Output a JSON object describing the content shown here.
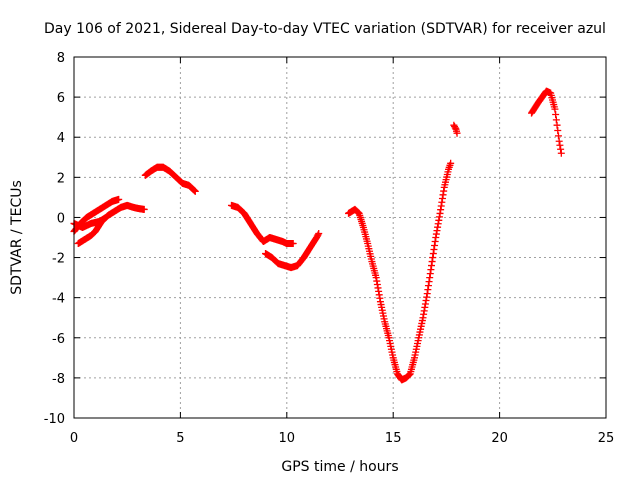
{
  "chart_data": {
    "type": "scatter",
    "title": "Day 106 of 2021, Sidereal Day-to-day VTEC variation (SDTVAR) for receiver azul",
    "xlabel": "GPS time / hours",
    "ylabel": "SDTVAR / TECUs",
    "xlim": [
      0,
      25
    ],
    "ylim": [
      -10,
      8
    ],
    "xticks": [
      "0",
      "5",
      "10",
      "15",
      "20",
      "25"
    ],
    "yticks": [
      "-10",
      "-8",
      "-6",
      "-4",
      "-2",
      "0",
      "2",
      "4",
      "6",
      "8"
    ],
    "grid": true,
    "marker": "+",
    "colors": {
      "series": "#ff0000",
      "grid": "#a0a0a0",
      "axes": "#000000"
    },
    "series": [
      {
        "segments": [
          [
            [
              0.0,
              -0.7
            ],
            [
              0.3,
              -0.3
            ],
            [
              0.6,
              0.0
            ],
            [
              0.9,
              0.2
            ],
            [
              1.2,
              0.4
            ],
            [
              1.5,
              0.6
            ],
            [
              1.8,
              0.8
            ],
            [
              2.1,
              0.9
            ]
          ],
          [
            [
              0.0,
              -0.3
            ],
            [
              0.4,
              -0.5
            ],
            [
              0.8,
              -0.3
            ],
            [
              1.2,
              -0.2
            ],
            [
              1.5,
              0.0
            ]
          ],
          [
            [
              0.2,
              -1.3
            ],
            [
              0.5,
              -1.1
            ],
            [
              0.8,
              -0.9
            ],
            [
              1.0,
              -0.7
            ],
            [
              1.3,
              -0.2
            ],
            [
              1.6,
              0.1
            ],
            [
              1.9,
              0.3
            ],
            [
              2.2,
              0.5
            ],
            [
              2.5,
              0.6
            ],
            [
              2.8,
              0.5
            ],
            [
              3.0,
              0.45
            ],
            [
              3.3,
              0.4
            ]
          ],
          [
            [
              3.35,
              2.1
            ],
            [
              3.6,
              2.3
            ],
            [
              3.9,
              2.5
            ],
            [
              4.2,
              2.5
            ],
            [
              4.5,
              2.3
            ],
            [
              4.8,
              2.0
            ],
            [
              5.1,
              1.7
            ],
            [
              5.4,
              1.6
            ],
            [
              5.7,
              1.3
            ]
          ],
          [
            [
              7.4,
              0.6
            ],
            [
              7.7,
              0.5
            ],
            [
              8.0,
              0.2
            ],
            [
              8.3,
              -0.3
            ],
            [
              8.6,
              -0.8
            ],
            [
              8.9,
              -1.2
            ],
            [
              9.2,
              -1.0
            ],
            [
              9.5,
              -1.1
            ],
            [
              9.8,
              -1.2
            ],
            [
              10.0,
              -1.3
            ],
            [
              10.3,
              -1.3
            ]
          ],
          [
            [
              9.0,
              -1.8
            ],
            [
              9.3,
              -2.0
            ],
            [
              9.6,
              -2.3
            ],
            [
              9.9,
              -2.4
            ],
            [
              10.2,
              -2.5
            ],
            [
              10.5,
              -2.4
            ],
            [
              10.8,
              -2.0
            ],
            [
              11.1,
              -1.5
            ],
            [
              11.4,
              -1.0
            ],
            [
              11.5,
              -0.8
            ]
          ],
          [
            [
              12.9,
              0.2
            ],
            [
              13.2,
              0.4
            ],
            [
              13.4,
              0.2
            ],
            [
              13.6,
              -0.5
            ],
            [
              13.8,
              -1.3
            ],
            [
              14.0,
              -2.2
            ],
            [
              14.2,
              -3.0
            ],
            [
              14.4,
              -4.2
            ],
            [
              14.6,
              -5.2
            ],
            [
              14.8,
              -6.0
            ],
            [
              15.0,
              -7.0
            ],
            [
              15.2,
              -7.8
            ],
            [
              15.4,
              -8.1
            ],
            [
              15.6,
              -8.0
            ],
            [
              15.8,
              -7.8
            ],
            [
              16.0,
              -7.0
            ],
            [
              16.2,
              -6.0
            ],
            [
              16.4,
              -5.0
            ],
            [
              16.6,
              -3.8
            ],
            [
              16.8,
              -2.4
            ],
            [
              17.0,
              -1.0
            ],
            [
              17.2,
              0.2
            ],
            [
              17.4,
              1.5
            ],
            [
              17.6,
              2.4
            ],
            [
              17.7,
              2.7
            ]
          ],
          [
            [
              17.85,
              4.6
            ],
            [
              17.95,
              4.4
            ],
            [
              18.0,
              4.2
            ]
          ],
          [
            [
              21.5,
              5.2
            ],
            [
              21.8,
              5.7
            ],
            [
              22.0,
              6.0
            ],
            [
              22.2,
              6.3
            ],
            [
              22.4,
              6.2
            ],
            [
              22.6,
              5.4
            ],
            [
              22.7,
              4.6
            ],
            [
              22.8,
              3.8
            ],
            [
              22.9,
              3.2
            ]
          ]
        ]
      }
    ]
  }
}
